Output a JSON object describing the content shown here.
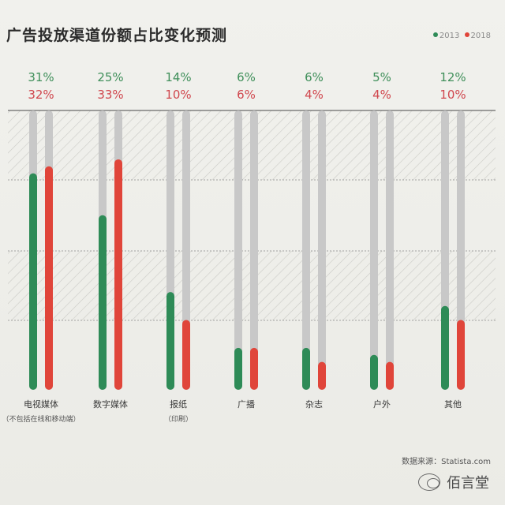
{
  "chart_data": {
    "type": "bar",
    "title": "广告投放渠道份额占比变化预测",
    "legend": {
      "placement": "top-right"
    },
    "categories": [
      {
        "label": "电视媒体",
        "sublabel": "（不包括在线和移动端）"
      },
      {
        "label": "数字媒体",
        "sublabel": ""
      },
      {
        "label": "报纸",
        "sublabel": "（印刷）"
      },
      {
        "label": "广播",
        "sublabel": ""
      },
      {
        "label": "杂志",
        "sublabel": ""
      },
      {
        "label": "户外",
        "sublabel": ""
      },
      {
        "label": "其他",
        "sublabel": ""
      }
    ],
    "series": [
      {
        "name": "2013",
        "color": "#2e8b57",
        "values": [
          31,
          25,
          14,
          6,
          6,
          5,
          12
        ],
        "labels": [
          "31%",
          "25%",
          "14%",
          "6%",
          "6%",
          "5%",
          "12%"
        ]
      },
      {
        "name": "2018",
        "color": "#e0453a",
        "values": [
          32,
          33,
          10,
          6,
          4,
          4,
          10
        ],
        "labels": [
          "32%",
          "33%",
          "10%",
          "6%",
          "4%",
          "4%",
          "10%"
        ]
      }
    ],
    "ylim": [
      0,
      40
    ],
    "value_unit": "%",
    "grid": true
  },
  "colors": {
    "track": "#c8c8c8",
    "hatch": "#cfcfcb",
    "background": "#efefeb",
    "label_green": "#3f8f5a",
    "label_red": "#d0474e"
  },
  "source": "数据来源：Statista.com",
  "watermark": "佰言堂",
  "watermark_icon": "wechat-icon"
}
